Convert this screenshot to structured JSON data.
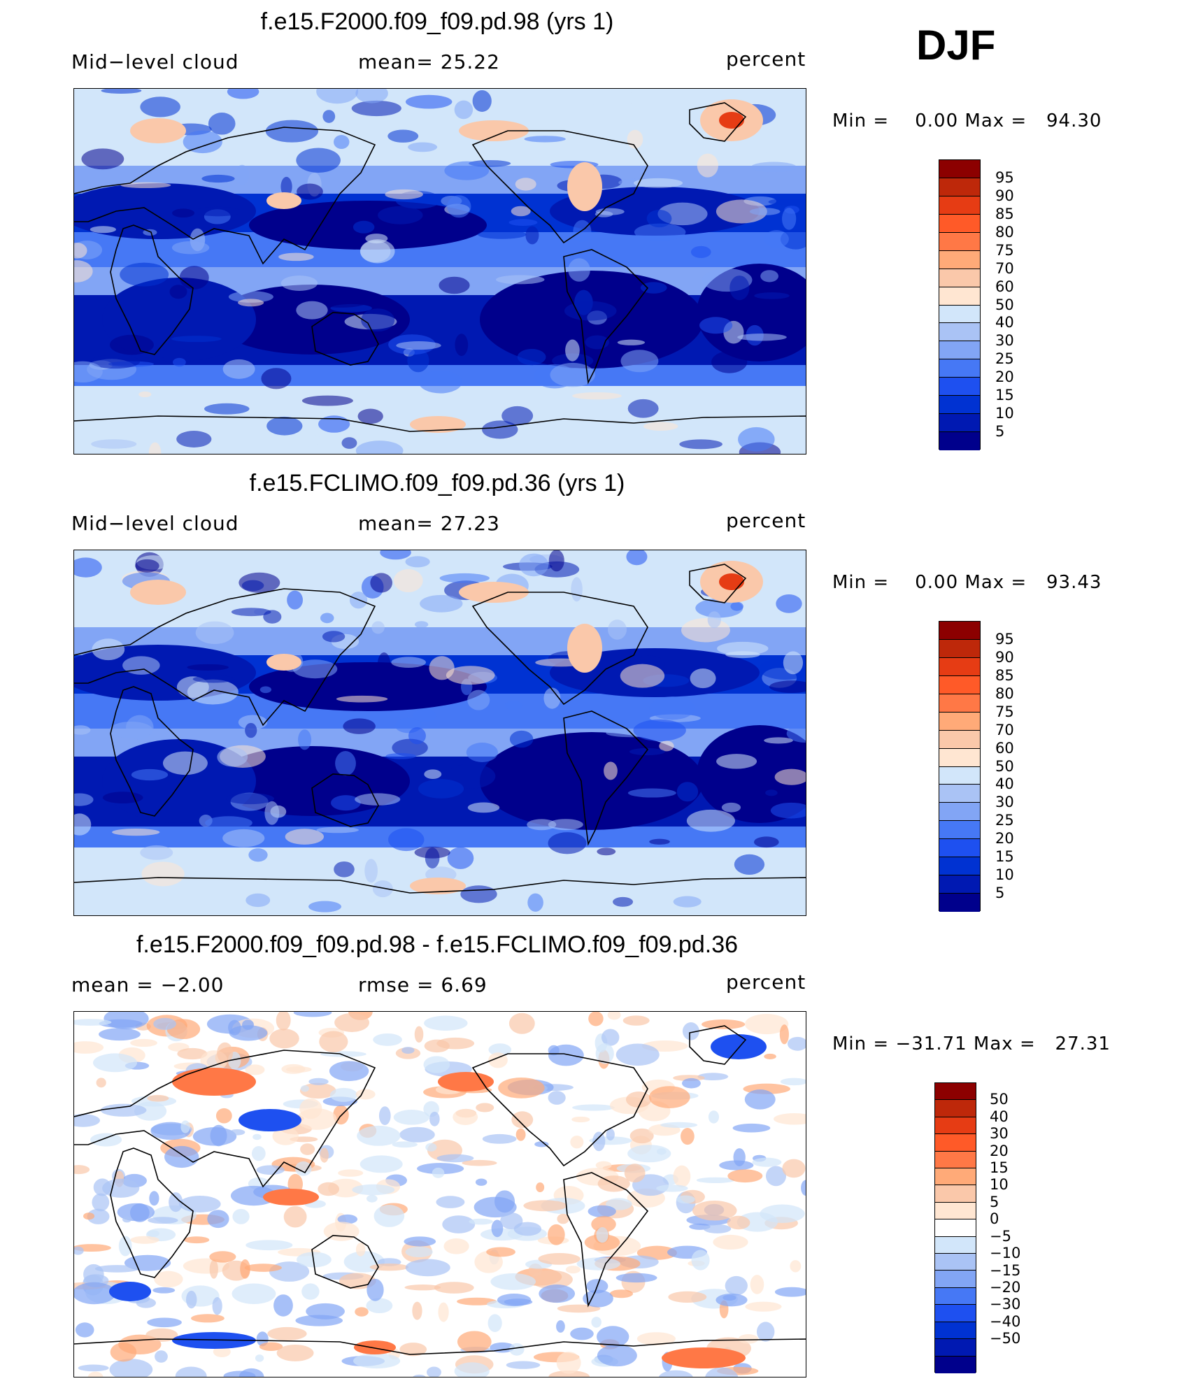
{
  "season": "DJF",
  "colors": {
    "seq": [
      "#00008c",
      "#0019b2",
      "#0032d2",
      "#1e50f0",
      "#4678f5",
      "#82a5f5",
      "#aac3f5",
      "#d2e6fa",
      "#ffe6d2",
      "#fac8aa",
      "#ffaa78",
      "#ff7846",
      "#ff5a28",
      "#e63c14",
      "#be280a",
      "#8c0000"
    ],
    "diff": [
      "#00008c",
      "#0019b2",
      "#0032d2",
      "#1e50f0",
      "#4678f5",
      "#82a5f5",
      "#aac3f5",
      "#d2e6fa",
      "#ffffff",
      "#ffe6d2",
      "#fac8aa",
      "#ffaa78",
      "#ff7846",
      "#ff5a28",
      "#e63c14",
      "#be280a",
      "#8c0000"
    ]
  },
  "panels": [
    {
      "title": "f.e15.F2000.f09_f09.pd.98 (yrs 1)",
      "left_label": "Mid−level cloud",
      "mid_label": "mean=   25.22",
      "units": "percent",
      "minmax": "Min =    0.00 Max =   94.30"
    },
    {
      "title": "f.e15.FCLIMO.f09_f09.pd.36 (yrs 1)",
      "left_label": "Mid−level cloud",
      "mid_label": "mean=   27.23",
      "units": "percent",
      "minmax": "Min =    0.00 Max =   93.43"
    },
    {
      "title": "f.e15.F2000.f09_f09.pd.98 - f.e15.FCLIMO.f09_f09.pd.36",
      "left_label": "mean =   −2.00",
      "mid_label": "rmse =    6.69",
      "units": "percent",
      "minmax": "Min = −31.71 Max =   27.31"
    }
  ],
  "chart_data": [
    {
      "type": "heatmap",
      "title": "f.e15.F2000.f09_f09.pd.98 (yrs 1)",
      "variable": "Mid-level cloud",
      "units": "percent",
      "mean": 25.22,
      "min": 0.0,
      "max": 94.3,
      "levels": [
        "95",
        "90",
        "85",
        "80",
        "75",
        "70",
        "60",
        "50",
        "40",
        "30",
        "25",
        "20",
        "15",
        "10",
        "5"
      ]
    },
    {
      "type": "heatmap",
      "title": "f.e15.FCLIMO.f09_f09.pd.36 (yrs 1)",
      "variable": "Mid-level cloud",
      "units": "percent",
      "mean": 27.23,
      "min": 0.0,
      "max": 93.43,
      "levels": [
        "95",
        "90",
        "85",
        "80",
        "75",
        "70",
        "60",
        "50",
        "40",
        "30",
        "25",
        "20",
        "15",
        "10",
        "5"
      ]
    },
    {
      "type": "heatmap",
      "title": "f.e15.F2000.f09_f09.pd.98 - f.e15.FCLIMO.f09_f09.pd.36",
      "units": "percent",
      "mean": -2.0,
      "rmse": 6.69,
      "min": -31.71,
      "max": 27.31,
      "levels": [
        "50",
        "40",
        "30",
        "20",
        "15",
        "10",
        "5",
        "0",
        "−5",
        "−10",
        "−15",
        "−20",
        "−30",
        "−40",
        "−50"
      ]
    }
  ]
}
